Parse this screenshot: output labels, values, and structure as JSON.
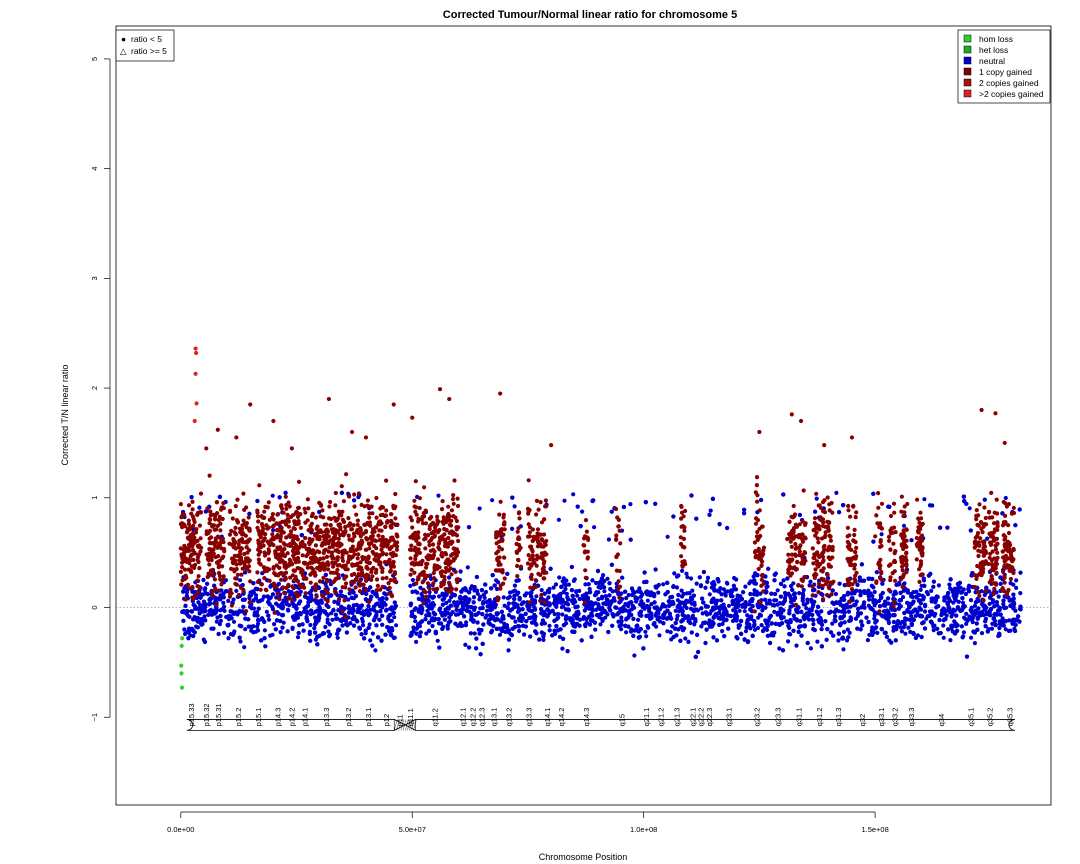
{
  "chart_data": {
    "type": "scatter",
    "title": "Corrected Tumour/Normal linear ratio for chromosome  5",
    "xlabel": "Chromosome Position",
    "ylabel": "Corrected T/N linear ratio",
    "xlim": [
      -14000000,
      188000000
    ],
    "ylim": [
      -1.8,
      5.3
    ],
    "x_ticks": [
      0,
      50000000,
      100000000,
      150000000
    ],
    "x_tick_labels": [
      "0.0e+00",
      "5.0e+07",
      "1.0e+08",
      "1.5e+08"
    ],
    "y_ticks": [
      -1,
      0,
      1,
      2,
      3,
      4,
      5
    ],
    "y_tick_labels": [
      "−1",
      "0",
      "1",
      "2",
      "3",
      "4",
      "5"
    ],
    "reference_line_y": 0,
    "chromosome_start": 0,
    "chromosome_end": 181500000,
    "centromere_position": 48500000,
    "shape_legend": {
      "position": "top-left",
      "items": [
        {
          "symbol": "●",
          "label": "ratio < 5"
        },
        {
          "symbol": "△",
          "label": "ratio >= 5"
        }
      ]
    },
    "legend": {
      "position": "top-right",
      "items": [
        {
          "label": "hom loss",
          "color": "#33cc33"
        },
        {
          "label": "het loss",
          "color": "#22aa22"
        },
        {
          "label": "neutral",
          "color": "#0000cc"
        },
        {
          "label": "1 copy gained",
          "color": "#880000"
        },
        {
          "label": "2 copies gained",
          "color": "#aa1111"
        },
        {
          "label": ">2 copies gained",
          "color": "#dd2222"
        }
      ]
    },
    "series": [
      {
        "name": "neutral",
        "color": "#0000cc",
        "baseline": 0.0,
        "spread": 0.32,
        "count": 5200
      },
      {
        "name": "1 copy gained",
        "color": "#880000",
        "baseline": 0.55,
        "spread": 0.55,
        "count": 2400
      },
      {
        "name": "hom loss",
        "color": "#33cc33",
        "points": [
          {
            "x": 300000,
            "y": -0.28
          },
          {
            "x": 200000,
            "y": -0.35
          },
          {
            "x": 100000,
            "y": -0.53
          },
          {
            "x": 150000,
            "y": -0.6
          },
          {
            "x": 250000,
            "y": -0.73
          }
        ]
      },
      {
        "name": ">2 copies gained",
        "color": "#dd2222",
        "points": [
          {
            "x": 3200000,
            "y": 2.36
          },
          {
            "x": 3300000,
            "y": 2.32
          },
          {
            "x": 3200000,
            "y": 2.13
          },
          {
            "x": 3400000,
            "y": 1.86
          },
          {
            "x": 3000000,
            "y": 1.7
          }
        ]
      }
    ],
    "gain_regions": [
      [
        0,
        4500000
      ],
      [
        5500000,
        9500000
      ],
      [
        10500000,
        15000000
      ],
      [
        16500000,
        47000000
      ],
      [
        49000000,
        60000000
      ],
      [
        68000000,
        70000000
      ],
      [
        72500000,
        73500000
      ],
      [
        75000000,
        79000000
      ],
      [
        87000000,
        88000000
      ],
      [
        94000000,
        95000000
      ],
      [
        108000000,
        109000000
      ],
      [
        124000000,
        126000000
      ],
      [
        131000000,
        135000000
      ],
      [
        136500000,
        141000000
      ],
      [
        144000000,
        146000000
      ],
      [
        150000000,
        151500000
      ],
      [
        153000000,
        154500000
      ],
      [
        155500000,
        157000000
      ],
      [
        159000000,
        160500000
      ],
      [
        171500000,
        174000000
      ],
      [
        174500000,
        176500000
      ],
      [
        177500000,
        180000000
      ]
    ],
    "high_points": [
      {
        "x": 5500000,
        "y": 1.45
      },
      {
        "x": 8000000,
        "y": 1.62
      },
      {
        "x": 12000000,
        "y": 1.55
      },
      {
        "x": 15000000,
        "y": 1.85
      },
      {
        "x": 20000000,
        "y": 1.7
      },
      {
        "x": 24000000,
        "y": 1.45
      },
      {
        "x": 32000000,
        "y": 1.9
      },
      {
        "x": 37000000,
        "y": 1.6
      },
      {
        "x": 40000000,
        "y": 1.55
      },
      {
        "x": 46000000,
        "y": 1.85
      },
      {
        "x": 50000000,
        "y": 1.73
      },
      {
        "x": 56000000,
        "y": 1.99
      },
      {
        "x": 58000000,
        "y": 1.9
      },
      {
        "x": 69000000,
        "y": 1.95
      },
      {
        "x": 80000000,
        "y": 1.48
      },
      {
        "x": 125000000,
        "y": 1.6
      },
      {
        "x": 132000000,
        "y": 1.76
      },
      {
        "x": 134000000,
        "y": 1.7
      },
      {
        "x": 139000000,
        "y": 1.48
      },
      {
        "x": 145000000,
        "y": 1.55
      },
      {
        "x": 173000000,
        "y": 1.8
      },
      {
        "x": 176000000,
        "y": 1.77
      },
      {
        "x": 178000000,
        "y": 1.5
      }
    ],
    "ideogram": {
      "bands": [
        {
          "name": "p15.33",
          "start": 0,
          "end": 4500000,
          "stain": "gneg"
        },
        {
          "name": "p15.32",
          "start": 4500000,
          "end": 6300000,
          "stain": "gpos"
        },
        {
          "name": "p15.31",
          "start": 6300000,
          "end": 9800000,
          "stain": "gneg"
        },
        {
          "name": "p15.2",
          "start": 9800000,
          "end": 15000000,
          "stain": "gpos"
        },
        {
          "name": "p15.1",
          "start": 15000000,
          "end": 18400000,
          "stain": "gneg"
        },
        {
          "name": "p14.3",
          "start": 18400000,
          "end": 23300000,
          "stain": "gpos"
        },
        {
          "name": "p14.2",
          "start": 23300000,
          "end": 24600000,
          "stain": "gneg"
        },
        {
          "name": "p14.1",
          "start": 24600000,
          "end": 28900000,
          "stain": "gpos"
        },
        {
          "name": "p13.3",
          "start": 28900000,
          "end": 33800000,
          "stain": "gneg"
        },
        {
          "name": "p13.2",
          "start": 33800000,
          "end": 38400000,
          "stain": "gpos"
        },
        {
          "name": "p13.1",
          "start": 38400000,
          "end": 42500000,
          "stain": "gneg"
        },
        {
          "name": "p12",
          "start": 42500000,
          "end": 46100000,
          "stain": "gpos"
        },
        {
          "name": "p11",
          "start": 46100000,
          "end": 48400000,
          "stain": "acen"
        },
        {
          "name": "q11.1",
          "start": 48400000,
          "end": 50700000,
          "stain": "acen"
        },
        {
          "name": "q11.2",
          "start": 50700000,
          "end": 58900000,
          "stain": "gneg"
        },
        {
          "name": "q12.1",
          "start": 58900000,
          "end": 62900000,
          "stain": "gpos"
        },
        {
          "name": "q12.2",
          "start": 62900000,
          "end": 63200000,
          "stain": "gneg"
        },
        {
          "name": "q12.3",
          "start": 63200000,
          "end": 66700000,
          "stain": "gpos"
        },
        {
          "name": "q13.1",
          "start": 66700000,
          "end": 68400000,
          "stain": "gneg"
        },
        {
          "name": "q13.2",
          "start": 68400000,
          "end": 73300000,
          "stain": "gpos"
        },
        {
          "name": "q13.3",
          "start": 73300000,
          "end": 76900000,
          "stain": "gneg"
        },
        {
          "name": "q14.1",
          "start": 76900000,
          "end": 81400000,
          "stain": "gpos"
        },
        {
          "name": "q14.2",
          "start": 81400000,
          "end": 82800000,
          "stain": "gneg"
        },
        {
          "name": "q14.3",
          "start": 82800000,
          "end": 92300000,
          "stain": "gpos"
        },
        {
          "name": "q15",
          "start": 92300000,
          "end": 98200000,
          "stain": "gneg"
        },
        {
          "name": "q21.1",
          "start": 98200000,
          "end": 102800000,
          "stain": "gpos"
        },
        {
          "name": "q21.2",
          "start": 102800000,
          "end": 104500000,
          "stain": "gneg"
        },
        {
          "name": "q21.3",
          "start": 104500000,
          "end": 109600000,
          "stain": "gpos"
        },
        {
          "name": "q22.1",
          "start": 109600000,
          "end": 111500000,
          "stain": "gneg"
        },
        {
          "name": "q22.2",
          "start": 111500000,
          "end": 113100000,
          "stain": "gpos"
        },
        {
          "name": "q22.3",
          "start": 113100000,
          "end": 115200000,
          "stain": "gneg"
        },
        {
          "name": "q23.1",
          "start": 115200000,
          "end": 121400000,
          "stain": "gpos"
        },
        {
          "name": "q23.2",
          "start": 121400000,
          "end": 127300000,
          "stain": "gneg"
        },
        {
          "name": "q23.3",
          "start": 127300000,
          "end": 130600000,
          "stain": "gpos"
        },
        {
          "name": "q31.1",
          "start": 130600000,
          "end": 136200000,
          "stain": "gneg"
        },
        {
          "name": "q31.2",
          "start": 136200000,
          "end": 139500000,
          "stain": "gpos"
        },
        {
          "name": "q31.3",
          "start": 139500000,
          "end": 144500000,
          "stain": "gneg"
        },
        {
          "name": "q32",
          "start": 144500000,
          "end": 149800000,
          "stain": "gpos"
        },
        {
          "name": "q33.1",
          "start": 149800000,
          "end": 152700000,
          "stain": "gneg"
        },
        {
          "name": "q33.2",
          "start": 152700000,
          "end": 155700000,
          "stain": "gpos"
        },
        {
          "name": "q33.3",
          "start": 155700000,
          "end": 159900000,
          "stain": "gneg"
        },
        {
          "name": "q34",
          "start": 159900000,
          "end": 168500000,
          "stain": "gpos"
        },
        {
          "name": "q35.1",
          "start": 168500000,
          "end": 172800000,
          "stain": "gneg"
        },
        {
          "name": "q35.2",
          "start": 172800000,
          "end": 176600000,
          "stain": "gpos"
        },
        {
          "name": "q35.3",
          "start": 176600000,
          "end": 181500000,
          "stain": "gneg"
        }
      ],
      "labels": [
        {
          "name": "p15.33",
          "x": 4200000
        },
        {
          "name": "p15.32",
          "x": 9000000
        },
        {
          "name": "p15.31",
          "x": 13500000
        },
        {
          "name": "p15.2",
          "x": 21000000
        },
        {
          "name": "p15.1",
          "x": 28500000
        },
        {
          "name": "p14.3",
          "x": 34500000
        },
        {
          "name": "p14.2",
          "x": 39000000
        },
        {
          "name": "p14.1",
          "x": 43500000
        },
        {
          "name": "p13.3",
          "x": 50000000
        },
        {
          "name": "p13.2",
          "x": 55500000
        },
        {
          "name": "p13.1",
          "x": 60500000
        },
        {
          "name": "p12",
          "x": 65000000
        },
        {
          "name": "p11",
          "x": 69500000
        },
        {
          "name": "q11.1",
          "x": 74000000
        },
        {
          "name": "q11.2",
          "x": 80000000
        },
        {
          "name": "q12.1",
          "x": 85000000
        },
        {
          "name": "q12.2",
          "x": 88000000
        },
        {
          "name": "q12.3",
          "x": 90500000
        },
        {
          "name": "q13.1",
          "x": 94500000
        },
        {
          "name": "q13.2",
          "x": 99500000
        },
        {
          "name": "q13.3",
          "x": 105000000
        },
        {
          "name": "q14.1",
          "x": 109000000
        },
        {
          "name": "q14.2",
          "x": 112500000
        },
        {
          "name": "q14.3",
          "x": 119500000
        },
        {
          "name": "q15",
          "x": 127500000
        },
        {
          "name": "q21.1",
          "x": 134000000
        },
        {
          "name": "q21.2",
          "x": 138500000
        },
        {
          "name": "q21.3",
          "x": 143000000
        },
        {
          "name": "q22.1",
          "x": 146500000
        },
        {
          "name": "q22.2",
          "x": 148500000
        },
        {
          "name": "q22.3",
          "x": 150500000
        },
        {
          "name": "q23.1",
          "x": 156000000
        },
        {
          "name": "q23.2",
          "x": 164500000
        },
        {
          "name": "q23.3",
          "x": 170500000
        },
        {
          "name": "q31.1",
          "x": 176000000
        },
        {
          "name": "q31.2",
          "x": 180000000
        },
        {
          "name": "q31.3",
          "x": 185000000
        },
        {
          "name": "q32",
          "x": 191000000
        },
        {
          "name": "q33.1",
          "x": 195500000
        },
        {
          "name": "q33.2",
          "x": 199500000
        },
        {
          "name": "q33.3",
          "x": 205000000
        },
        {
          "name": "q34",
          "x": 213000000
        },
        {
          "name": "q35.1",
          "x": 220000000
        },
        {
          "name": "q35.2",
          "x": 224500000
        },
        {
          "name": "q35.3",
          "x": 229500000
        }
      ]
    }
  }
}
